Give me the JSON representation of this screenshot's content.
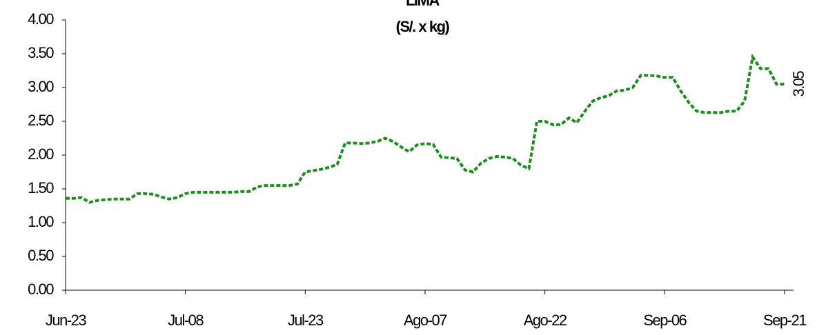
{
  "chart_data": {
    "type": "line",
    "title": "LIMA",
    "subtitle": "(S/. x kg)",
    "categories": [
      "Jun-23",
      null,
      null,
      null,
      null,
      null,
      null,
      null,
      null,
      null,
      null,
      null,
      null,
      null,
      null,
      "Jul-08",
      null,
      null,
      null,
      null,
      null,
      null,
      null,
      null,
      null,
      null,
      null,
      null,
      null,
      null,
      "Jul-23",
      null,
      null,
      null,
      null,
      null,
      null,
      null,
      null,
      null,
      null,
      null,
      null,
      null,
      null,
      "Ago-07",
      null,
      null,
      null,
      null,
      null,
      null,
      null,
      null,
      null,
      null,
      null,
      null,
      null,
      null,
      "Ago-22",
      null,
      null,
      null,
      null,
      null,
      null,
      null,
      null,
      null,
      null,
      null,
      null,
      null,
      null,
      "Sep-06",
      null,
      null,
      null,
      null,
      null,
      null,
      null,
      null,
      null,
      null,
      null,
      null,
      null,
      null,
      "Sep-21"
    ],
    "series": [
      {
        "name": "LIMA",
        "color": "#1f8c1f",
        "values": [
          1.36,
          1.36,
          1.37,
          1.3,
          1.33,
          1.34,
          1.35,
          1.35,
          1.35,
          1.43,
          1.43,
          1.42,
          1.38,
          1.35,
          1.37,
          1.43,
          1.45,
          1.45,
          1.45,
          1.45,
          1.45,
          1.45,
          1.46,
          1.46,
          1.53,
          1.55,
          1.55,
          1.55,
          1.55,
          1.57,
          1.75,
          1.77,
          1.79,
          1.82,
          1.86,
          2.18,
          2.18,
          2.17,
          2.18,
          2.2,
          2.25,
          2.2,
          2.12,
          2.05,
          2.15,
          2.17,
          2.16,
          1.97,
          1.96,
          1.95,
          1.78,
          1.75,
          1.88,
          1.95,
          1.98,
          1.97,
          1.95,
          1.85,
          1.8,
          2.5,
          2.5,
          2.45,
          2.45,
          2.55,
          2.48,
          2.65,
          2.8,
          2.85,
          2.88,
          2.95,
          2.96,
          3.0,
          3.18,
          3.18,
          3.17,
          3.15,
          3.15,
          2.95,
          2.78,
          2.65,
          2.63,
          2.63,
          2.63,
          2.65,
          2.65,
          2.8,
          3.45,
          3.28,
          3.28,
          3.05,
          3.05
        ]
      }
    ],
    "ylim": [
      0,
      4
    ],
    "yticks": [
      {
        "value": 0,
        "label": "0.00"
      },
      {
        "value": 0.5,
        "label": "0.50"
      },
      {
        "value": 1,
        "label": "1.00"
      },
      {
        "value": 1.5,
        "label": "1.50"
      },
      {
        "value": 2,
        "label": "2.00"
      },
      {
        "value": 2.5,
        "label": "2.50"
      },
      {
        "value": 3,
        "label": "3.00"
      },
      {
        "value": 3.5,
        "label": "3.50"
      },
      {
        "value": 4,
        "label": "4.00"
      }
    ],
    "grid": false
  }
}
